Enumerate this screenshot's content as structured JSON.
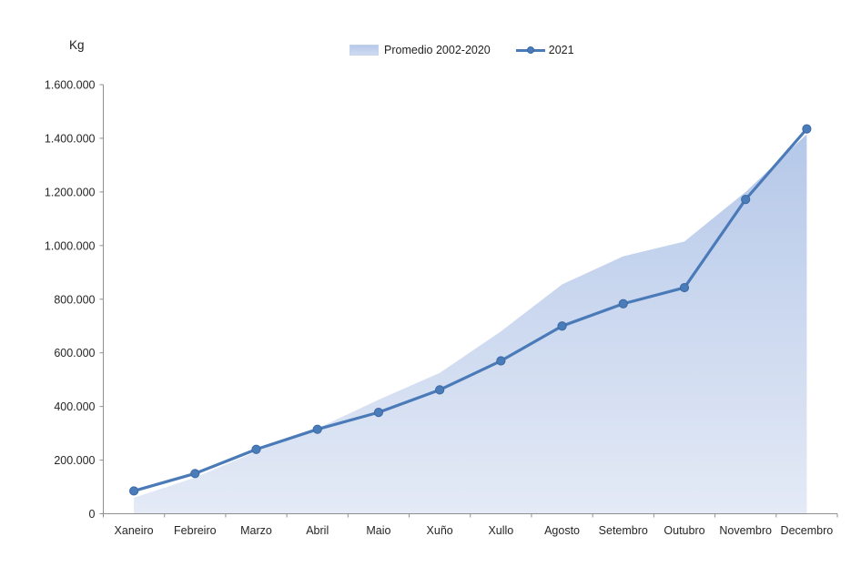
{
  "unit_label": "Kg",
  "chart_data": {
    "type": "combo-area-line",
    "title": "",
    "xlabel": "",
    "ylabel": "Kg",
    "categories": [
      "Xaneiro",
      "Febreiro",
      "Marzo",
      "Abril",
      "Maio",
      "Xuño",
      "Xullo",
      "Agosto",
      "Setembro",
      "Outubro",
      "Novembro",
      "Decembro"
    ],
    "series": [
      {
        "name": "Promedio 2002-2020",
        "type": "area",
        "values": [
          60000,
          135000,
          232000,
          318000,
          425000,
          525000,
          680000,
          855000,
          960000,
          1015000,
          1200000,
          1415000
        ]
      },
      {
        "name": "2021",
        "type": "line",
        "values": [
          85000,
          150000,
          240000,
          315000,
          378000,
          462000,
          570000,
          700000,
          783000,
          843000,
          1172000,
          1435000
        ]
      }
    ],
    "ylim": [
      0,
      1600000
    ],
    "y_ticks": [
      {
        "value": 0,
        "label": "0"
      },
      {
        "value": 200000,
        "label": "200.000"
      },
      {
        "value": 400000,
        "label": "400.000"
      },
      {
        "value": 600000,
        "label": "600.000"
      },
      {
        "value": 800000,
        "label": "800.000"
      },
      {
        "value": 1000000,
        "label": "1.000.000"
      },
      {
        "value": 1200000,
        "label": "1.200.000"
      },
      {
        "value": 1400000,
        "label": "1.400.000"
      },
      {
        "value": 1600000,
        "label": "1.600.000"
      }
    ],
    "grid": false,
    "legend_position": "top-center",
    "colors": {
      "line": "#4a7ab8",
      "marker_fill": "#4a7cba",
      "marker_stroke": "#3c69a2",
      "area_top": "#b5c8e9",
      "area_bottom": "#e4eaf6",
      "axis": "#8f8f8f",
      "text": "#262626"
    }
  }
}
